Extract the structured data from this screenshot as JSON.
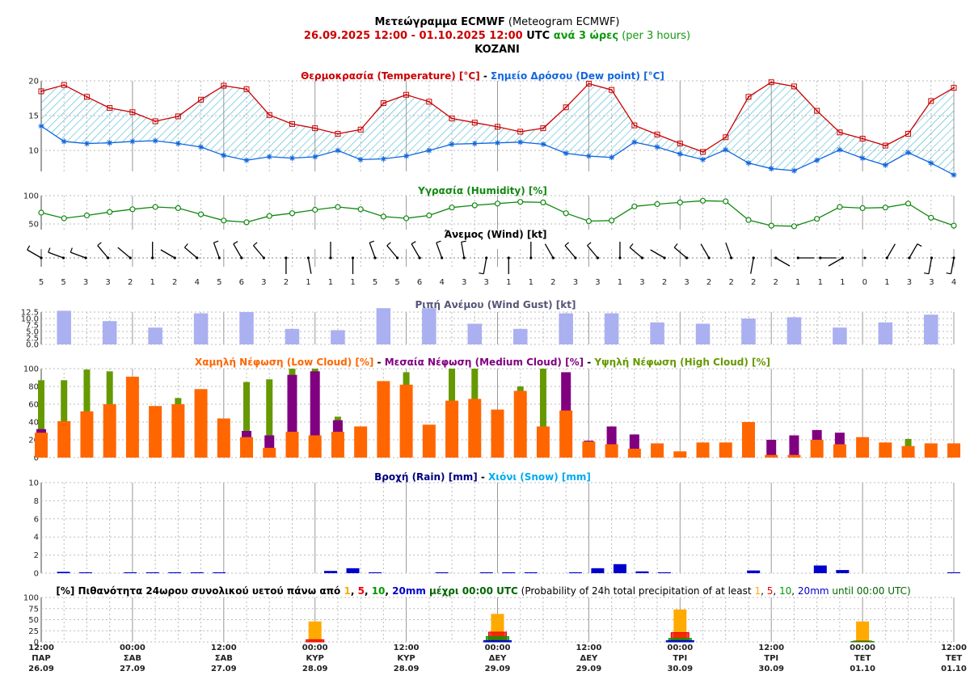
{
  "header": {
    "line1_bold": "Μετεώγραμμα ECMWF",
    "line1_normal": " (Meteogram ECMWF)",
    "date_start": "26.09.2025 12:00",
    "date_sep": " - ",
    "date_end": "01.10.2025 12:00",
    "utc": " UTC ",
    "step_bold": "ανά 3 ώρες",
    "step_normal": " (per 3 hours)",
    "location": "KOZANI"
  },
  "colors": {
    "temperature": "#cc0000",
    "dewpoint": "#1166dd",
    "humidity": "#118811",
    "gust": "#aab0f0",
    "low_cloud": "#ff6600",
    "medium_cloud": "#800080",
    "high_cloud": "#669900",
    "rain": "#0000cc",
    "snow": "#00aaee",
    "prob1": "#ffaa00",
    "prob5": "#ee0000",
    "prob10": "#009900",
    "prob20": "#0000cc"
  },
  "panels": {
    "temp_title_a": "Θερμοκρασία (Temperature) [°C]",
    "temp_title_sep": " - ",
    "temp_title_b": "Σημείο Δρόσου (Dew point) [°C]",
    "humidity_title": "Υγρασία (Humidity) [%]",
    "wind_title": "Άνεμος (Wind) [kt]",
    "gust_title": "Ριπή Ανέμου (Wind Gust) [kt]",
    "cloud_title_a": "Χαμηλή Νέφωση (Low Cloud) [%]",
    "cloud_title_sep": " - ",
    "cloud_title_b": "Μεσαία Νέφωση (Medium Cloud) [%]",
    "cloud_title_c": "Υψηλή Νέφωση (High Cloud) [%]",
    "rain_title_a": "Βροχή (Rain) [mm]",
    "rain_title_sep": " - ",
    "rain_title_b": "Χιόνι (Snow) [mm]",
    "prob_gr_a": "[%] Πιθανότητα 24ωρου συνολικού υετού πάνω από ",
    "prob_gr_b": " μέχρι 00:00 UTC",
    "prob_en_a": " (Probability of 24h total precipitation of at least ",
    "prob_en_b": " until 00:00 UTC)",
    "prob_thresholds": [
      "1",
      "5",
      "10",
      "20mm"
    ],
    "prob_sep": ", "
  },
  "chart_data": {
    "type": "meteogram",
    "step_hours": 3,
    "x_ticks": [
      {
        "time": "12:00",
        "day": "ΠΑΡ",
        "date": "26.09"
      },
      {
        "time": "00:00",
        "day": "ΣΑΒ",
        "date": "27.09"
      },
      {
        "time": "12:00",
        "day": "ΣΑΒ",
        "date": "27.09"
      },
      {
        "time": "00:00",
        "day": "ΚΥΡ",
        "date": "28.09"
      },
      {
        "time": "12:00",
        "day": "ΚΥΡ",
        "date": "28.09"
      },
      {
        "time": "00:00",
        "day": "ΔΕΥ",
        "date": "29.09"
      },
      {
        "time": "12:00",
        "day": "ΔΕΥ",
        "date": "29.09"
      },
      {
        "time": "00:00",
        "day": "ΤΡΙ",
        "date": "30.09"
      },
      {
        "time": "12:00",
        "day": "ΤΡΙ",
        "date": "30.09"
      },
      {
        "time": "00:00",
        "day": "ΤΕΤ",
        "date": "01.10"
      },
      {
        "time": "12:00",
        "day": "ΤΕΤ",
        "date": "01.10"
      }
    ],
    "temperature": [
      18.5,
      19.4,
      17.7,
      16.1,
      15.5,
      14.2,
      14.9,
      17.3,
      19.3,
      18.8,
      15.1,
      13.8,
      13.2,
      12.4,
      13.0,
      16.8,
      18.0,
      17.0,
      14.6,
      14.0,
      13.4,
      12.7,
      13.2,
      16.2,
      19.6,
      18.7,
      13.6,
      12.3,
      11.0,
      9.8,
      11.9,
      17.7,
      19.8,
      19.2,
      15.7,
      12.6,
      11.7,
      10.7,
      12.4,
      17.1,
      19.0
    ],
    "dewpoint": [
      13.5,
      11.3,
      11.0,
      11.1,
      11.3,
      11.4,
      11.0,
      10.5,
      9.3,
      8.6,
      9.1,
      8.9,
      9.1,
      10.0,
      8.7,
      8.8,
      9.2,
      10.0,
      10.9,
      11.0,
      11.1,
      11.2,
      10.9,
      9.6,
      9.2,
      9.0,
      11.2,
      10.5,
      9.5,
      8.7,
      10.1,
      8.2,
      7.4,
      7.1,
      8.6,
      10.1,
      8.9,
      7.9,
      9.7,
      8.2,
      6.5
    ],
    "temp_ylim": [
      7,
      20
    ],
    "temp_yticks": [
      10,
      15,
      20
    ],
    "humidity": [
      70,
      60,
      65,
      71,
      76,
      80,
      78,
      67,
      56,
      53,
      64,
      69,
      75,
      80,
      76,
      63,
      60,
      65,
      79,
      83,
      86,
      89,
      88,
      69,
      55,
      56,
      81,
      85,
      88,
      91,
      90,
      57,
      47,
      46,
      59,
      80,
      78,
      79,
      86,
      61,
      47
    ],
    "humidity_ylim": [
      40,
      100
    ],
    "humidity_yticks": [
      50,
      100
    ],
    "wind_speed": [
      5,
      5,
      3,
      3,
      2,
      1,
      2,
      4,
      5,
      6,
      3,
      2,
      1,
      1,
      1,
      5,
      5,
      6,
      4,
      3,
      3,
      1,
      1,
      2,
      3,
      3,
      1,
      3,
      2,
      3,
      2,
      2,
      2,
      2,
      1,
      1,
      1,
      0,
      1,
      3,
      3,
      4
    ],
    "wind_dir_deg": [
      300,
      290,
      290,
      320,
      310,
      0,
      300,
      310,
      340,
      330,
      320,
      180,
      170,
      0,
      180,
      340,
      320,
      330,
      340,
      350,
      190,
      180,
      0,
      330,
      320,
      320,
      0,
      310,
      300,
      310,
      330,
      340,
      190,
      120,
      90,
      90,
      240,
      0,
      30,
      30,
      190,
      190
    ],
    "wind_gust": [
      0,
      13.0,
      0,
      9.0,
      0,
      6.5,
      0,
      12.0,
      0,
      12.5,
      0,
      6.0,
      0,
      5.5,
      0,
      14.0,
      0,
      14.0,
      0,
      8.0,
      0,
      6.0,
      0,
      12.0,
      0,
      12.0,
      0,
      8.5,
      0,
      8.0,
      0,
      10.0,
      0,
      10.5,
      0,
      6.5,
      0,
      8.5,
      0,
      11.5
    ],
    "gust_ylim": [
      0,
      12.5
    ],
    "gust_yticks": [
      0.0,
      2.5,
      5.0,
      7.5,
      10.0,
      12.5
    ],
    "low_cloud": [
      28,
      41,
      52,
      60,
      91,
      58,
      60,
      77,
      44,
      23,
      11,
      29,
      25,
      29,
      35,
      86,
      82,
      37,
      64,
      66,
      54,
      75,
      35,
      53,
      18,
      15,
      10,
      16,
      7,
      17,
      17,
      40,
      3,
      3,
      20,
      15,
      23,
      17,
      13,
      16,
      16
    ],
    "medium_cloud": [
      32,
      0,
      0,
      0,
      0,
      0,
      0,
      0,
      0,
      30,
      25,
      93,
      97,
      42,
      0,
      0,
      0,
      0,
      0,
      0,
      0,
      0,
      0,
      96,
      19,
      35,
      26,
      0,
      0,
      0,
      0,
      0,
      20,
      25,
      31,
      28,
      0,
      0,
      0,
      0,
      0
    ],
    "high_cloud": [
      87,
      87,
      99,
      97,
      0,
      0,
      67,
      0,
      0,
      85,
      88,
      100,
      100,
      46,
      0,
      0,
      96,
      0,
      100,
      100,
      0,
      80,
      100,
      0,
      0,
      0,
      0,
      0,
      0,
      0,
      0,
      0,
      0,
      0,
      0,
      0,
      0,
      0,
      21,
      0,
      0
    ],
    "cloud_ylim": [
      0,
      100
    ],
    "cloud_yticks": [
      0,
      20,
      40,
      60,
      80,
      100
    ],
    "rain": [
      0,
      0.15,
      0.1,
      0,
      0.1,
      0.1,
      0.1,
      0.1,
      0.1,
      0,
      0,
      0,
      0,
      0.25,
      0.55,
      0.1,
      0,
      0,
      0.1,
      0,
      0.1,
      0.1,
      0.1,
      0,
      0.1,
      0.55,
      1.0,
      0.2,
      0.1,
      0,
      0,
      0,
      0.3,
      0,
      0,
      0.85,
      0.35,
      0,
      0,
      0,
      0,
      0.1
    ],
    "snow": [],
    "rain_ylim": [
      0,
      10
    ],
    "rain_yticks": [
      0,
      2,
      4,
      6,
      8,
      10
    ],
    "prob_days": [
      {
        "tick_index": 3,
        "p1": 46,
        "p5": 5,
        "p10": 0,
        "p20": 0
      },
      {
        "tick_index": 5,
        "p1": 63,
        "p5": 22,
        "p10": 12,
        "p20": 3
      },
      {
        "tick_index": 7,
        "p1": 73,
        "p5": 21,
        "p10": 8,
        "p20": 3
      },
      {
        "tick_index": 9,
        "p1": 46,
        "p5": 2,
        "p10": 1,
        "p20": 0
      }
    ],
    "prob_ylim": [
      0,
      100
    ],
    "prob_yticks": [
      0,
      25,
      50,
      75,
      100
    ]
  }
}
